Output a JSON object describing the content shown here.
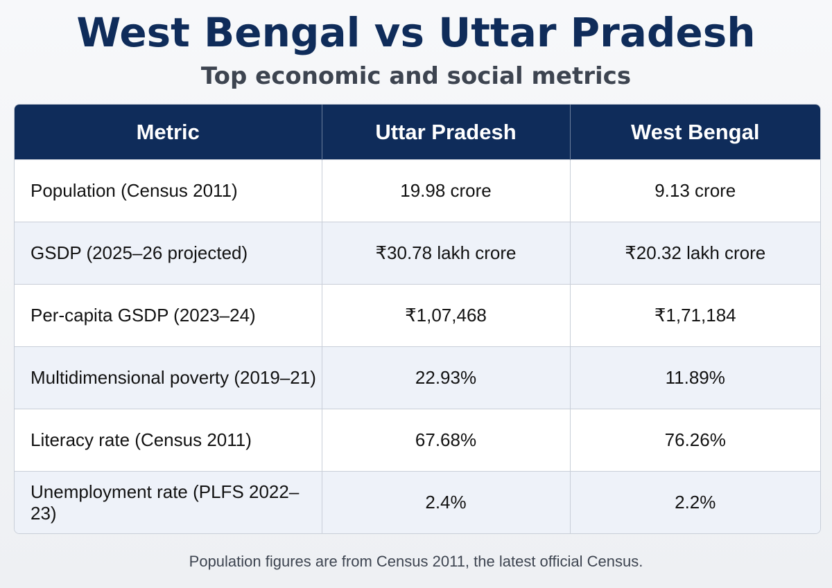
{
  "header": {
    "title": "West Bengal vs Uttar Pradesh",
    "subtitle": "Top economic and social metrics"
  },
  "table": {
    "columns": [
      "Metric",
      "Uttar Pradesh",
      "West Bengal"
    ],
    "rows": [
      {
        "metric": "Population (Census 2011)",
        "up": "19.98 crore",
        "wb": "9.13 crore"
      },
      {
        "metric": "GSDP (2025–26 projected)",
        "up": "₹30.78 lakh crore",
        "wb": "₹20.32 lakh crore"
      },
      {
        "metric": "Per-capita GSDP (2023–24)",
        "up": "₹1,07,468",
        "wb": "₹1,71,184"
      },
      {
        "metric": "Multidimensional poverty (2019–21)",
        "up": "22.93%",
        "wb": "11.89%"
      },
      {
        "metric": "Literacy rate (Census 2011)",
        "up": "67.68%",
        "wb": "76.26%"
      },
      {
        "metric": "Unemployment rate (PLFS 2022–23)",
        "up": "2.4%",
        "wb": "2.2%"
      }
    ]
  },
  "footnote": "Population figures are from Census 2011, the latest official Census.",
  "colors": {
    "header_bg": "#0f2c5a",
    "title": "#0f2c5a",
    "alt_row": "#eef2f9"
  }
}
